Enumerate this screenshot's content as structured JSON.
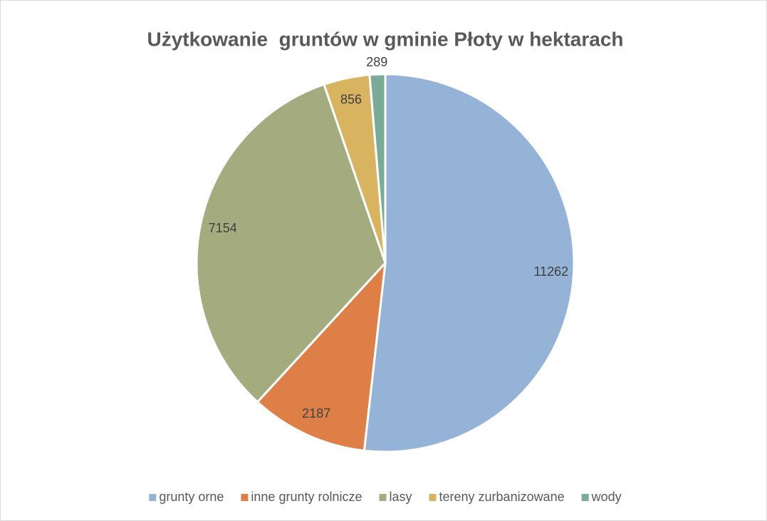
{
  "chart_data": {
    "type": "pie",
    "title": "Użytkowanie  gruntów w gminie Płoty w hektarach",
    "categories": [
      "grunty orne",
      "inne grunty rolnicze",
      "lasy",
      "tereny zurbanizowane",
      "wody"
    ],
    "values": [
      11262,
      2187,
      7154,
      856,
      289
    ],
    "colors": [
      "#95b3d7",
      "#dd7f47",
      "#a4ab7f",
      "#d8b360",
      "#7aaa98"
    ],
    "legend": "bottom"
  }
}
